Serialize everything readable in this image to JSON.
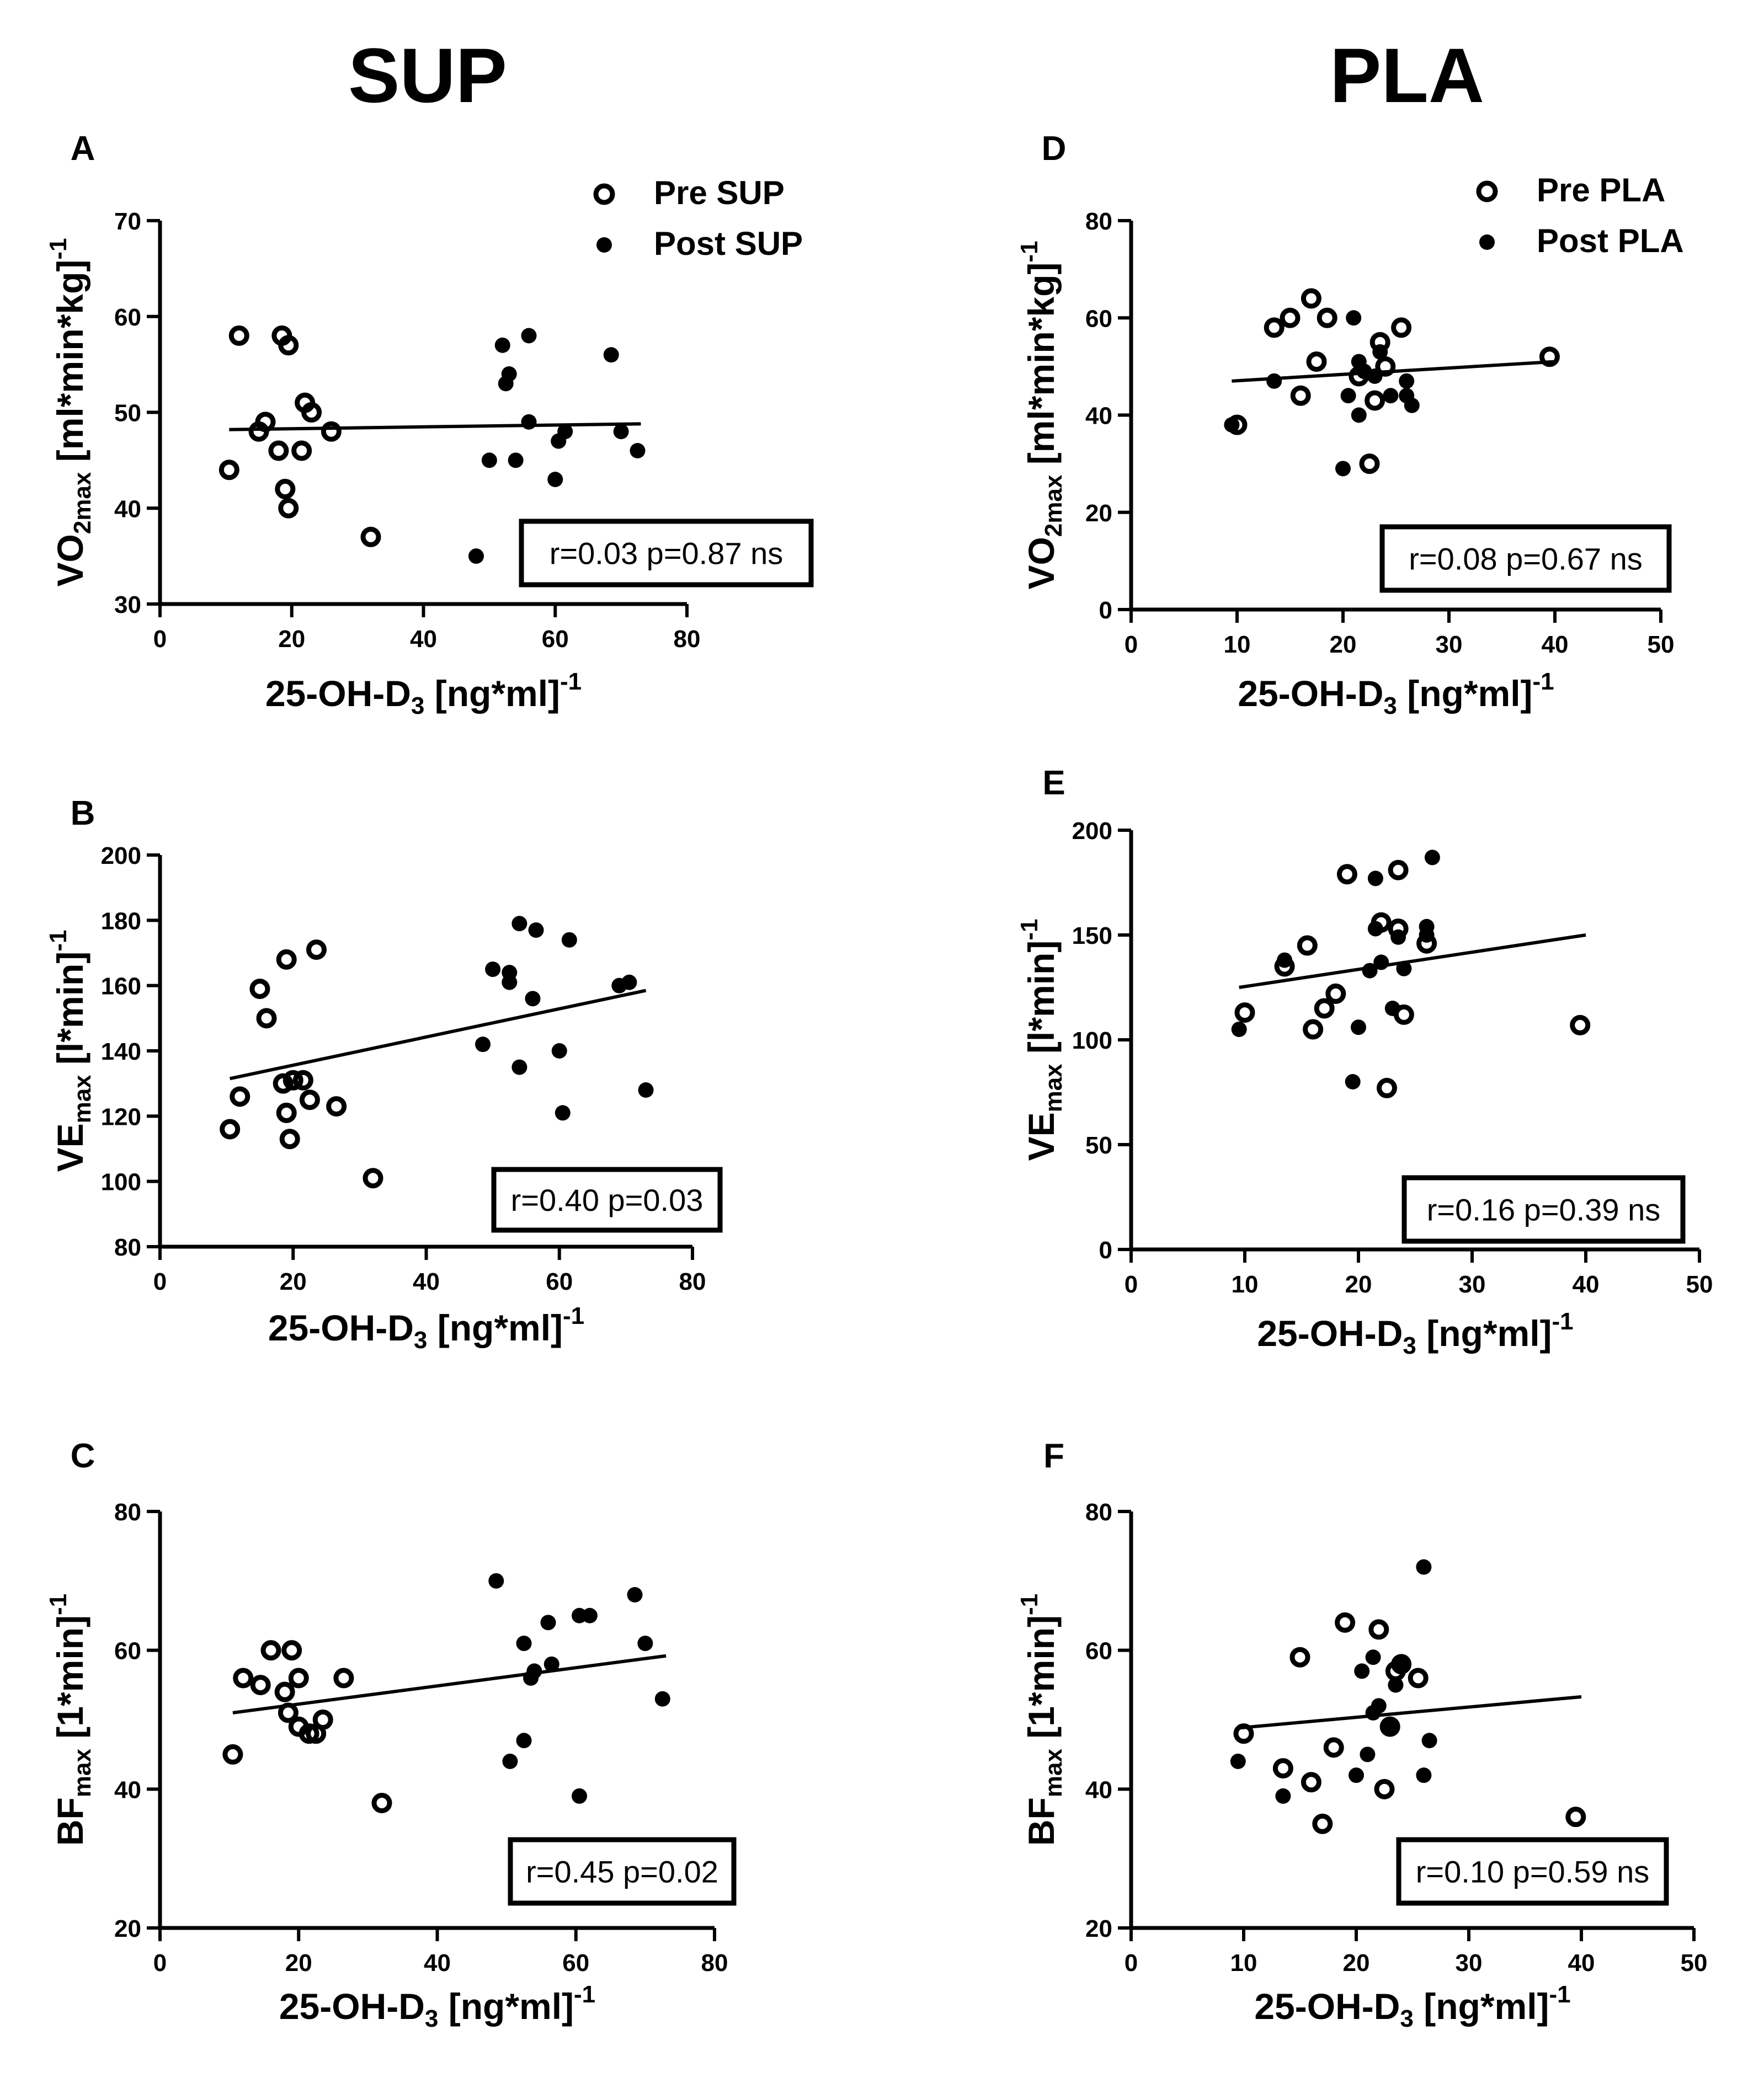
{
  "columns": {
    "left_title": "SUP",
    "right_title": "PLA"
  },
  "colors": {
    "marker": "#000000",
    "axis": "#000000",
    "background": "#ffffff"
  },
  "chart_data": [
    {
      "id": "A",
      "panel_label": "A",
      "type": "scatter",
      "xlabel": {
        "main": "25-OH-D",
        "sub": "3",
        "after": " [ng*ml]",
        "sup": "-1"
      },
      "ylabel": {
        "main": "VO",
        "sub": "2max",
        "after": " [ml*min*kg]",
        "sup": "-1"
      },
      "xlim": [
        0,
        80
      ],
      "ylim": [
        30,
        70
      ],
      "xticks": [
        "0",
        "20",
        "40",
        "60",
        "80"
      ],
      "yticks": [
        "30",
        "40",
        "50",
        "60",
        "70"
      ],
      "legend": [
        "Pre SUP",
        "Post SUP"
      ],
      "legend_position": "top-right",
      "stat": "r=0.03 p=0.87 ns",
      "regression": {
        "x": [
          10.5,
          73
        ],
        "y": [
          48.2,
          48.8
        ]
      },
      "series": [
        {
          "name": "Pre SUP",
          "marker": "open",
          "points": [
            [
              10.5,
              44
            ],
            [
              12,
              58
            ],
            [
              15,
              48
            ],
            [
              16,
              49
            ],
            [
              18,
              46
            ],
            [
              18.5,
              58
            ],
            [
              19,
              42
            ],
            [
              19.5,
              57
            ],
            [
              19.5,
              40
            ],
            [
              21.5,
              46
            ],
            [
              22,
              51
            ],
            [
              23,
              50
            ],
            [
              26,
              48
            ],
            [
              32,
              37
            ]
          ]
        },
        {
          "name": "Post SUP",
          "marker": "filled",
          "points": [
            [
              48,
              35
            ],
            [
              50,
              45
            ],
            [
              52,
              57
            ],
            [
              52.5,
              53
            ],
            [
              53,
              54
            ],
            [
              54,
              45
            ],
            [
              56,
              58
            ],
            [
              56,
              49
            ],
            [
              60,
              43
            ],
            [
              60.5,
              47
            ],
            [
              61.5,
              48
            ],
            [
              68.5,
              56
            ],
            [
              70,
              48
            ],
            [
              72.5,
              46
            ]
          ]
        }
      ]
    },
    {
      "id": "B",
      "panel_label": "B",
      "type": "scatter",
      "xlabel": {
        "main": "25-OH-D",
        "sub": "3",
        "after": " [ng*ml]",
        "sup": "-1"
      },
      "ylabel": {
        "main": "VE",
        "sub": "max",
        "after": " [l*min]",
        "sup": "-1"
      },
      "xlim": [
        0,
        80
      ],
      "ylim": [
        80,
        200
      ],
      "xticks": [
        "0",
        "20",
        "40",
        "60",
        "80"
      ],
      "yticks": [
        "80",
        "100",
        "120",
        "140",
        "160",
        "180",
        "200"
      ],
      "legend": [],
      "stat": "r=0.40 p=0.03",
      "regression": {
        "x": [
          10.5,
          73
        ],
        "y": [
          131.5,
          158.5
        ]
      },
      "series": [
        {
          "name": "Pre SUP",
          "marker": "open",
          "points": [
            [
              10.5,
              116
            ],
            [
              12,
              126
            ],
            [
              15,
              159
            ],
            [
              16,
              150
            ],
            [
              18.5,
              130
            ],
            [
              19,
              168
            ],
            [
              19,
              121
            ],
            [
              19.5,
              113
            ],
            [
              20,
              131
            ],
            [
              21.5,
              131
            ],
            [
              22.5,
              125
            ],
            [
              23.5,
              171
            ],
            [
              26.5,
              123
            ],
            [
              32,
              101
            ]
          ]
        },
        {
          "name": "Post SUP",
          "marker": "filled",
          "points": [
            [
              48.5,
              142
            ],
            [
              50,
              165
            ],
            [
              52.5,
              161
            ],
            [
              52.5,
              164
            ],
            [
              54,
              135
            ],
            [
              54,
              179
            ],
            [
              56,
              156
            ],
            [
              56.5,
              177
            ],
            [
              60,
              140
            ],
            [
              60.5,
              121
            ],
            [
              61.5,
              174
            ],
            [
              69,
              160
            ],
            [
              70.5,
              161
            ],
            [
              73,
              128
            ]
          ]
        }
      ]
    },
    {
      "id": "C",
      "panel_label": "C",
      "type": "scatter",
      "xlabel": {
        "main": "25-OH-D",
        "sub": "3",
        "after": " [ng*ml]",
        "sup": "-1"
      },
      "ylabel": {
        "main": "BF",
        "sub": "max",
        "after": " [1*min]",
        "sup": "-1"
      },
      "xlim": [
        0,
        80
      ],
      "ylim": [
        20,
        80
      ],
      "xticks": [
        "0",
        "20",
        "40",
        "60",
        "80"
      ],
      "yticks": [
        "20",
        "40",
        "60",
        "80"
      ],
      "legend": [],
      "stat": "r=0.45 p=0.02",
      "regression": {
        "x": [
          10.5,
          73
        ],
        "y": [
          51,
          59.2
        ]
      },
      "series": [
        {
          "name": "Pre SUP",
          "marker": "open",
          "points": [
            [
              10.5,
              45
            ],
            [
              12,
              56
            ],
            [
              14.5,
              55
            ],
            [
              16,
              60
            ],
            [
              18,
              54
            ],
            [
              18.5,
              51
            ],
            [
              19,
              60
            ],
            [
              20,
              49
            ],
            [
              20,
              56
            ],
            [
              21.5,
              48
            ],
            [
              22.5,
              48
            ],
            [
              23.5,
              50
            ],
            [
              26.5,
              56
            ],
            [
              32,
              38
            ]
          ]
        },
        {
          "name": "Post SUP",
          "marker": "filled",
          "points": [
            [
              48.5,
              70
            ],
            [
              50.5,
              44
            ],
            [
              52.5,
              47
            ],
            [
              52.5,
              61
            ],
            [
              53.5,
              56
            ],
            [
              54,
              57
            ],
            [
              56,
              64
            ],
            [
              56.5,
              58
            ],
            [
              60.5,
              39
            ],
            [
              60.5,
              65
            ],
            [
              62,
              65
            ],
            [
              68.5,
              68
            ],
            [
              70,
              61
            ],
            [
              72.5,
              53
            ]
          ]
        }
      ]
    },
    {
      "id": "D",
      "panel_label": "D",
      "type": "scatter",
      "xlabel": {
        "main": "25-OH-D",
        "sub": "3",
        "after": " [ng*ml]",
        "sup": "-1"
      },
      "ylabel": {
        "main": "VO",
        "sub": "2max",
        "after": " [ml*min*kg]",
        "sup": "-1"
      },
      "xlim": [
        0,
        50
      ],
      "ylim": [
        0,
        80
      ],
      "xticks": [
        "0",
        "10",
        "20",
        "30",
        "40",
        "50"
      ],
      "yticks": [
        "0",
        "20",
        "40",
        "60",
        "80"
      ],
      "legend": [
        "Pre PLA",
        "Post PLA"
      ],
      "legend_position": "top-right",
      "stat": "r=0.08 p=0.67 ns",
      "regression": {
        "x": [
          9.5,
          40
        ],
        "y": [
          47,
          51
        ]
      },
      "series": [
        {
          "name": "Pre PLA",
          "marker": "open",
          "points": [
            [
              10,
              38
            ],
            [
              13.5,
              58
            ],
            [
              15,
              60
            ],
            [
              16,
              44
            ],
            [
              17,
              64
            ],
            [
              17.5,
              51
            ],
            [
              18.5,
              60
            ],
            [
              21.5,
              48
            ],
            [
              22.5,
              30
            ],
            [
              23,
              43
            ],
            [
              23.5,
              55
            ],
            [
              24,
              50
            ],
            [
              25.5,
              58
            ],
            [
              39.5,
              52
            ]
          ]
        },
        {
          "name": "Post PLA",
          "marker": "filled",
          "points": [
            [
              9.5,
              38
            ],
            [
              13.5,
              47
            ],
            [
              20,
              29
            ],
            [
              20.5,
              44
            ],
            [
              21,
              60
            ],
            [
              21.5,
              40
            ],
            [
              21.5,
              51
            ],
            [
              22,
              49
            ],
            [
              23,
              48
            ],
            [
              23.5,
              53
            ],
            [
              24.5,
              44
            ],
            [
              26,
              47
            ],
            [
              26,
              44
            ],
            [
              26.5,
              42
            ]
          ]
        }
      ]
    },
    {
      "id": "E",
      "panel_label": "E",
      "type": "scatter",
      "xlabel": {
        "main": "25-OH-D",
        "sub": "3",
        "after": " [ng*ml]",
        "sup": "-1"
      },
      "ylabel": {
        "main": "VE",
        "sub": "max",
        "after": " [l*min]",
        "sup": "-1"
      },
      "xlim": [
        0,
        50
      ],
      "ylim": [
        0,
        200
      ],
      "xticks": [
        "0",
        "10",
        "20",
        "30",
        "40",
        "50"
      ],
      "yticks": [
        "0",
        "50",
        "100",
        "150",
        "200"
      ],
      "legend": [],
      "stat": "r=0.16 p=0.39 ns",
      "regression": {
        "x": [
          9.5,
          40
        ],
        "y": [
          125,
          150
        ]
      },
      "series": [
        {
          "name": "Pre PLA",
          "marker": "open",
          "points": [
            [
              10,
              113
            ],
            [
              13.5,
              135
            ],
            [
              15.5,
              145
            ],
            [
              16,
              105
            ],
            [
              17,
              115
            ],
            [
              18,
              122
            ],
            [
              19,
              179
            ],
            [
              22,
              156
            ],
            [
              22.5,
              77
            ],
            [
              23.5,
              181
            ],
            [
              23.5,
              153
            ],
            [
              24,
              112
            ],
            [
              26,
              146
            ],
            [
              39.5,
              107
            ]
          ]
        },
        {
          "name": "Post PLA",
          "marker": "filled",
          "points": [
            [
              9.5,
              105
            ],
            [
              13.5,
              138
            ],
            [
              19.5,
              80
            ],
            [
              20,
              106
            ],
            [
              21,
              133
            ],
            [
              21.5,
              153
            ],
            [
              21.5,
              177
            ],
            [
              22,
              137
            ],
            [
              23,
              115
            ],
            [
              23.5,
              149
            ],
            [
              24,
              134
            ],
            [
              26,
              150
            ],
            [
              26,
              154
            ],
            [
              26.5,
              187
            ]
          ]
        }
      ]
    },
    {
      "id": "F",
      "panel_label": "F",
      "type": "scatter",
      "xlabel": {
        "main": "25-OH-D",
        "sub": "3",
        "after": " [ng*ml]",
        "sup": "-1"
      },
      "ylabel": {
        "main": "BF",
        "sub": "max",
        "after": " [1*min]",
        "sup": "-1"
      },
      "xlim": [
        0,
        50
      ],
      "ylim": [
        20,
        80
      ],
      "xticks": [
        "0",
        "10",
        "20",
        "30",
        "40",
        "50"
      ],
      "yticks": [
        "20",
        "40",
        "60",
        "80"
      ],
      "legend": [],
      "stat": "r=0.10 p=0.59 ns",
      "regression": {
        "x": [
          9.5,
          40
        ],
        "y": [
          48.8,
          53.3
        ]
      },
      "series": [
        {
          "name": "Pre PLA",
          "marker": "open",
          "points": [
            [
              10,
              48
            ],
            [
              13.5,
              43
            ],
            [
              15,
              59
            ],
            [
              16,
              41
            ],
            [
              17,
              35
            ],
            [
              18,
              46
            ],
            [
              19,
              64
            ],
            [
              22,
              63
            ],
            [
              22.5,
              40
            ],
            [
              23,
              49
            ],
            [
              23.5,
              57
            ],
            [
              24,
              58
            ],
            [
              25.5,
              56
            ],
            [
              39.5,
              36
            ]
          ]
        },
        {
          "name": "Post PLA",
          "marker": "filled",
          "points": [
            [
              9.5,
              44
            ],
            [
              13.5,
              39
            ],
            [
              20,
              42
            ],
            [
              20.5,
              57
            ],
            [
              21,
              45
            ],
            [
              21.5,
              51
            ],
            [
              21.5,
              59
            ],
            [
              22,
              52
            ],
            [
              23,
              49
            ],
            [
              23.5,
              55
            ],
            [
              24,
              58
            ],
            [
              26,
              42
            ],
            [
              26,
              72
            ],
            [
              26.5,
              47
            ]
          ]
        }
      ]
    }
  ]
}
